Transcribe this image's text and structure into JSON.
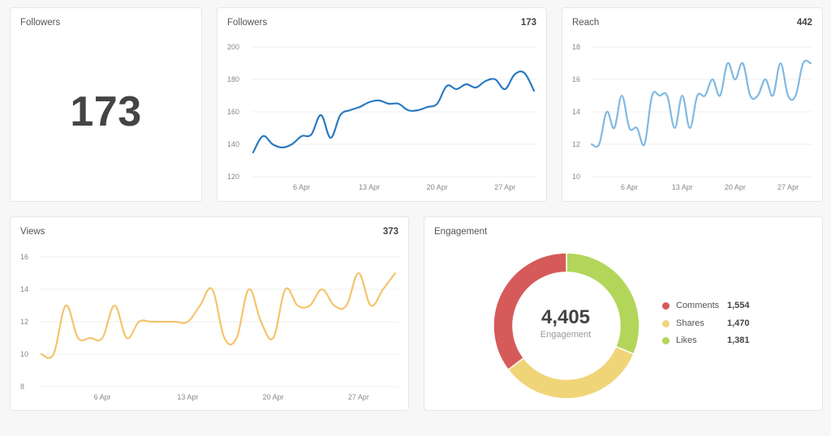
{
  "followers_card": {
    "title": "Followers",
    "value": "173"
  },
  "followers_chart": {
    "title": "Followers",
    "total": "173"
  },
  "reach_chart": {
    "title": "Reach",
    "total": "442"
  },
  "views_chart": {
    "title": "Views",
    "total": "373"
  },
  "engagement": {
    "title": "Engagement",
    "total": "4,405",
    "caption": "Engagement",
    "items": [
      {
        "label": "Comments",
        "value": "1,554",
        "color": "#d65a5a"
      },
      {
        "label": "Shares",
        "value": "1,470",
        "color": "#f0d578"
      },
      {
        "label": "Likes",
        "value": "1,381",
        "color": "#b3d65a"
      }
    ]
  },
  "colors": {
    "followers_line": "#2a7abf",
    "reach_line": "#80b9e2",
    "views_line": "#f4c46c"
  },
  "chart_data": [
    {
      "type": "line",
      "name": "followers",
      "title": "Followers",
      "x_start_day": 1,
      "x_ticks": [
        6,
        13,
        20,
        27
      ],
      "x_tick_labels": [
        "6 Apr",
        "13 Apr",
        "20 Apr",
        "27 Apr"
      ],
      "ylim": [
        120,
        200
      ],
      "y_ticks": [
        120,
        140,
        160,
        180,
        200
      ],
      "values": [
        135,
        145,
        140,
        138,
        140,
        145,
        146,
        158,
        144,
        158,
        161,
        163,
        166,
        167,
        165,
        165,
        161,
        161,
        163,
        165,
        176,
        174,
        177,
        175,
        179,
        180,
        174,
        183,
        184,
        173
      ],
      "grid": true
    },
    {
      "type": "line",
      "name": "reach",
      "title": "Reach",
      "x_start_day": 1,
      "x_ticks": [
        6,
        13,
        20,
        27
      ],
      "x_tick_labels": [
        "6 Apr",
        "13 Apr",
        "20 Apr",
        "27 Apr"
      ],
      "ylim": [
        10,
        18
      ],
      "y_ticks": [
        10,
        12,
        14,
        16,
        18
      ],
      "values": [
        12,
        12,
        14,
        13,
        15,
        13,
        13,
        12,
        15,
        15,
        15,
        13,
        15,
        13,
        15,
        15,
        16,
        15,
        17,
        16,
        17,
        15,
        15,
        16,
        15,
        17,
        15,
        15,
        17,
        17
      ],
      "grid": true
    },
    {
      "type": "line",
      "name": "views",
      "title": "Views",
      "x_start_day": 1,
      "x_ticks": [
        6,
        13,
        20,
        27
      ],
      "x_tick_labels": [
        "6 Apr",
        "13 Apr",
        "20 Apr",
        "27 Apr"
      ],
      "ylim": [
        8,
        16
      ],
      "y_ticks": [
        8,
        10,
        12,
        14,
        16
      ],
      "values": [
        10,
        10,
        13,
        11,
        11,
        11,
        13,
        11,
        12,
        12,
        12,
        12,
        12,
        13,
        14,
        11,
        11,
        14,
        12,
        11,
        14,
        13,
        13,
        14,
        13,
        13,
        15,
        13,
        14,
        15
      ],
      "grid": true
    },
    {
      "type": "pie",
      "name": "engagement",
      "title": "Engagement",
      "categories": [
        "Comments",
        "Shares",
        "Likes"
      ],
      "values": [
        1554,
        1470,
        1381
      ]
    }
  ]
}
